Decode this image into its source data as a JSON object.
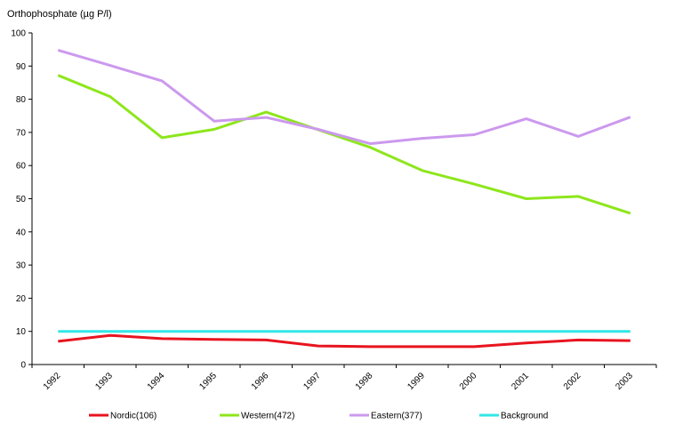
{
  "chart_data": {
    "type": "line",
    "title": "",
    "ylabel": "Orthophosphate (µg P/l)",
    "xlabel": "",
    "ylim": [
      0,
      100
    ],
    "yticks": [
      0,
      10,
      20,
      30,
      40,
      50,
      60,
      70,
      80,
      90,
      100
    ],
    "categories": [
      "1992",
      "1993",
      "1994",
      "1995",
      "1996",
      "1997",
      "1998",
      "1999",
      "2000",
      "2001",
      "2002",
      "2003"
    ],
    "grid": false,
    "legend_position": "bottom",
    "series": [
      {
        "name": "Nordic(106)",
        "color": "#e8141f",
        "values": [
          7.0,
          8.8,
          7.8,
          7.6,
          7.4,
          5.6,
          5.4,
          5.4,
          5.4,
          6.5,
          7.4,
          7.2
        ]
      },
      {
        "name": "Western(472)",
        "color": "#8ee61c",
        "values": [
          87.2,
          80.8,
          68.4,
          70.9,
          76.1,
          70.8,
          65.5,
          58.5,
          54.4,
          50.0,
          50.7,
          45.6
        ]
      },
      {
        "name": "Eastern(377)",
        "color": "#cc99ee",
        "values": [
          94.8,
          90.2,
          85.5,
          73.4,
          74.5,
          70.9,
          66.6,
          68.2,
          69.3,
          74.1,
          68.8,
          74.6
        ]
      },
      {
        "name": "Background",
        "color": "#33e6e6",
        "values": [
          10,
          10,
          10,
          10,
          10,
          10,
          10,
          10,
          10,
          10,
          10,
          10
        ]
      }
    ]
  }
}
